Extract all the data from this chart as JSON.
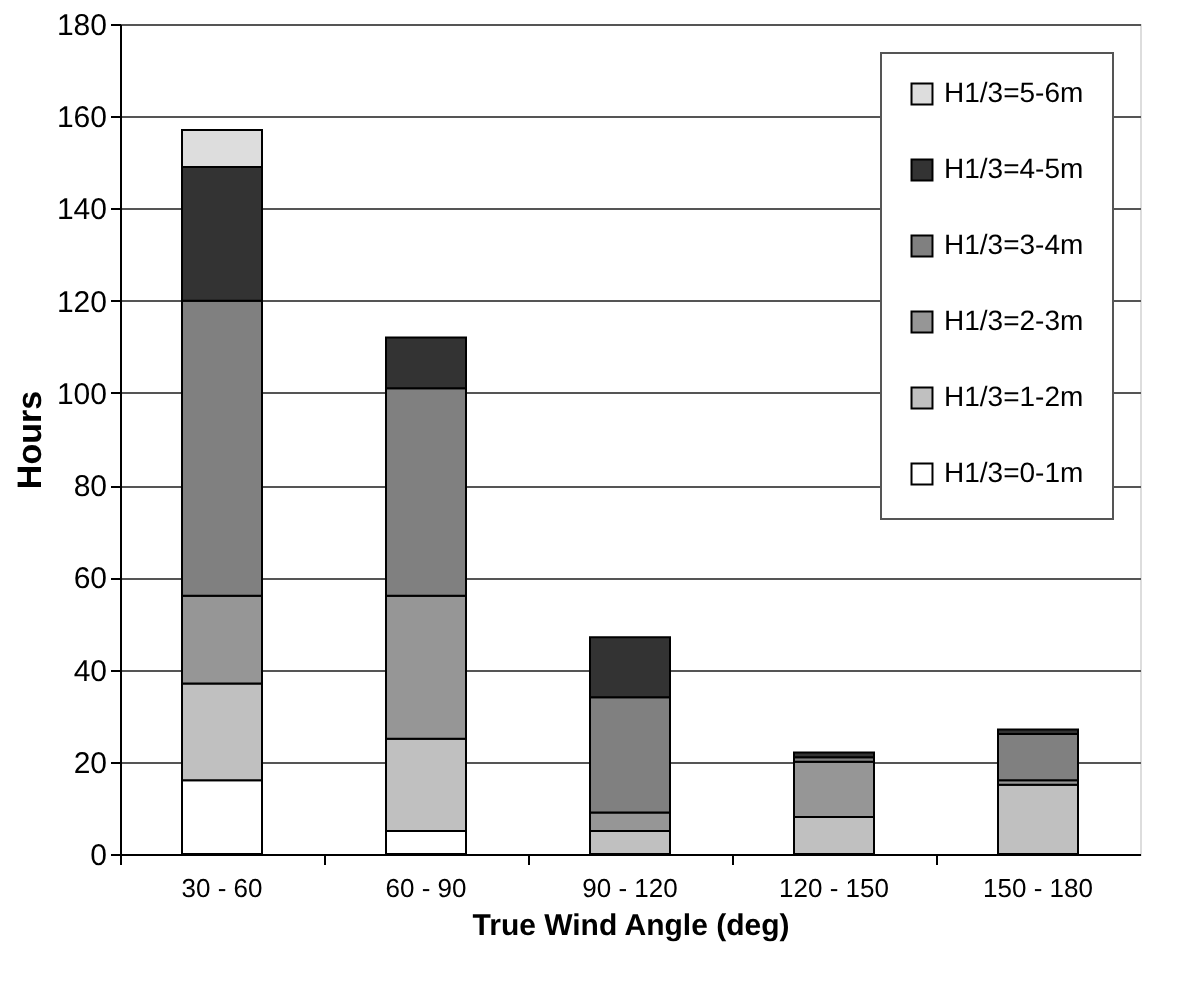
{
  "chart_data": {
    "type": "bar",
    "stacked": true,
    "xlabel": "True Wind Angle (deg)",
    "ylabel": "Hours",
    "categories": [
      "30 - 60",
      "60 - 90",
      "90 - 120",
      "120 - 150",
      "150 - 180"
    ],
    "series": [
      {
        "name": "H1/3=0-1m",
        "color": "#ffffff",
        "values": [
          16,
          5,
          0,
          0,
          0
        ]
      },
      {
        "name": "H1/3=1-2m",
        "color": "#c0c0c0",
        "values": [
          21,
          20,
          5,
          8,
          15
        ]
      },
      {
        "name": "H1/3=2-3m",
        "color": "#969696",
        "values": [
          19,
          31,
          4,
          12,
          1
        ]
      },
      {
        "name": "H1/3=3-4m",
        "color": "#808080",
        "values": [
          64,
          45,
          25,
          1,
          10
        ]
      },
      {
        "name": "H1/3=4-5m",
        "color": "#333333",
        "values": [
          29,
          11,
          13,
          1,
          1
        ]
      },
      {
        "name": "H1/3=5-6m",
        "color": "#dddddd",
        "values": [
          8,
          0,
          0,
          0,
          0
        ]
      }
    ],
    "ylim": [
      0,
      180
    ],
    "yticks": [
      0,
      20,
      40,
      60,
      80,
      100,
      120,
      140,
      160,
      180
    ],
    "grid": "y",
    "legend": "top right"
  }
}
